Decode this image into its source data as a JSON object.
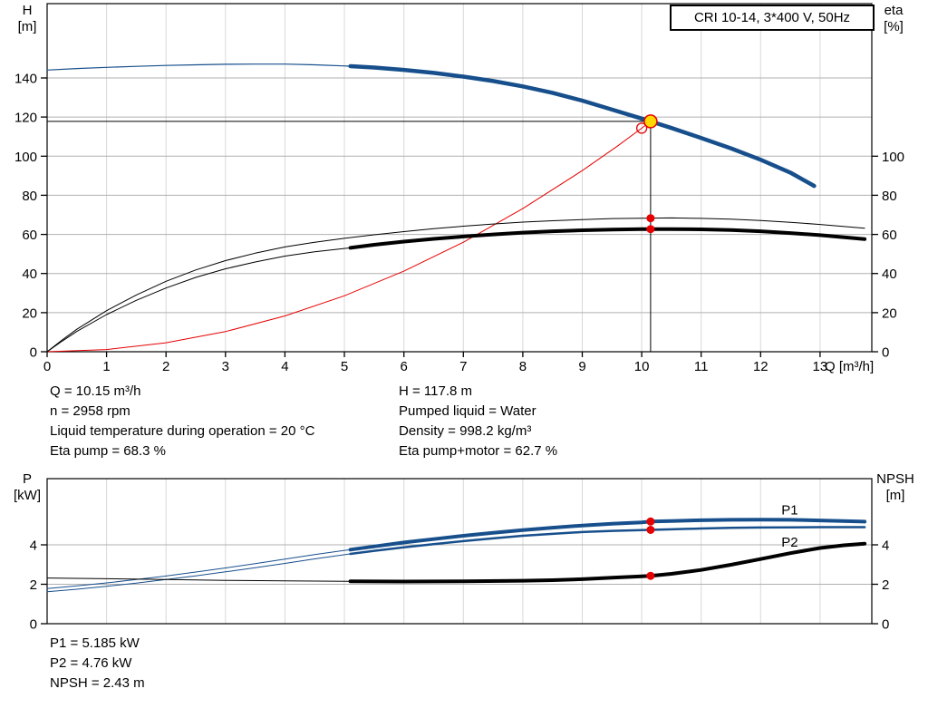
{
  "info": {
    "left": [
      "Q = 10.15 m³/h",
      "n = 2958 rpm",
      "Liquid temperature during operation = 20 °C",
      "Eta pump = 68.3 %"
    ],
    "right": [
      "H = 117.8 m",
      "Pumped liquid = Water",
      "Density = 998.2 kg/m³",
      "Eta pump+motor = 62.7 %"
    ],
    "bottom": [
      "P1 = 5.185 kW",
      "P2 = 4.76 kW",
      "NPSH = 2.43 m"
    ]
  },
  "colors": {
    "curve_blue": "#174f8c",
    "curve_black": "#000000",
    "red": "#e60000",
    "duty_yellow": "#ffd800",
    "grid_h": "#b0b0b0",
    "grid_v": "#d8d8d8",
    "frame": "#000000"
  },
  "chart_data": [
    {
      "type": "line",
      "title": "CRI 10-14, 3*400 V, 50Hz",
      "xlabel": "Q [m³/h]",
      "ylabel_left": [
        "H",
        "[m]"
      ],
      "ylabel_right": [
        "eta",
        "[%]"
      ],
      "xlim": [
        0,
        13.87
      ],
      "ylim_left": [
        0,
        178
      ],
      "x_ticks": [
        0,
        1,
        2,
        3,
        4,
        5,
        6,
        7,
        8,
        9,
        10,
        11,
        12,
        13
      ],
      "x_grid": [
        1,
        2,
        3,
        4,
        5,
        6,
        7,
        8,
        9,
        10,
        11,
        12,
        13
      ],
      "y_ticks_left": [
        0,
        20,
        40,
        60,
        80,
        100,
        120,
        140
      ],
      "y_ticks_right": [
        0,
        20,
        40,
        60,
        80,
        100
      ],
      "duty_lines": {
        "q": 10.15,
        "v": 117.8
      },
      "series": [
        {
          "name": "system-curve",
          "color": "red",
          "width": 1,
          "points": [
            [
              0,
              0
            ],
            [
              1,
              1.1
            ],
            [
              2,
              4.6
            ],
            [
              3,
              10.3
            ],
            [
              4,
              18.3
            ],
            [
              5,
              28.6
            ],
            [
              6,
              41.2
            ],
            [
              7,
              56
            ],
            [
              8,
              73.2
            ],
            [
              9,
              92.6
            ],
            [
              9.6,
              105.3
            ],
            [
              10,
              114.3
            ],
            [
              10.15,
              117.8
            ]
          ]
        },
        {
          "name": "hq-curve-thin",
          "color": "curve_blue",
          "width": 1.2,
          "points": [
            [
              0,
              144
            ],
            [
              0.5,
              144.8
            ],
            [
              1,
              145.4
            ],
            [
              1.5,
              145.9
            ],
            [
              2,
              146.4
            ],
            [
              2.5,
              146.7
            ],
            [
              3,
              147
            ],
            [
              3.5,
              147.1
            ],
            [
              4,
              147.1
            ],
            [
              4.5,
              146.7
            ],
            [
              5.1,
              146
            ]
          ]
        },
        {
          "name": "hq-curve",
          "color": "curve_blue",
          "width": 4.5,
          "points": [
            [
              5.1,
              146
            ],
            [
              5.5,
              145.3
            ],
            [
              6,
              144.1
            ],
            [
              6.5,
              142.6
            ],
            [
              7,
              140.7
            ],
            [
              7.5,
              138.4
            ],
            [
              8,
              135.7
            ],
            [
              8.5,
              132.4
            ],
            [
              9,
              128.4
            ],
            [
              9.5,
              123.8
            ],
            [
              10,
              119.2
            ],
            [
              10.15,
              117.8
            ],
            [
              10.5,
              114.4
            ],
            [
              11,
              109.3
            ],
            [
              11.5,
              104
            ],
            [
              12,
              98.2
            ],
            [
              12.5,
              91.6
            ],
            [
              12.9,
              84.8
            ]
          ]
        },
        {
          "name": "eta-pump-curve",
          "color": "curve_black",
          "width": 1,
          "points": [
            [
              0,
              0
            ],
            [
              0.25,
              6
            ],
            [
              0.5,
              11.5
            ],
            [
              1,
              21
            ],
            [
              1.5,
              29
            ],
            [
              2,
              36
            ],
            [
              2.5,
              41.8
            ],
            [
              3,
              46.6
            ],
            [
              3.5,
              50.4
            ],
            [
              4,
              53.6
            ],
            [
              4.5,
              56
            ],
            [
              5,
              58
            ],
            [
              5.5,
              59.8
            ],
            [
              6,
              61.4
            ],
            [
              6.5,
              62.9
            ],
            [
              7,
              64.2
            ],
            [
              7.5,
              65.3
            ],
            [
              8,
              66.3
            ],
            [
              8.5,
              67
            ],
            [
              9,
              67.6
            ],
            [
              9.5,
              68.1
            ],
            [
              10,
              68.3
            ],
            [
              10.5,
              68.4
            ],
            [
              11,
              68.2
            ],
            [
              11.5,
              67.8
            ],
            [
              12,
              67.1
            ],
            [
              12.5,
              66.2
            ],
            [
              13,
              65.1
            ],
            [
              13.75,
              63.2
            ]
          ]
        },
        {
          "name": "eta-pump-motor-thin",
          "color": "curve_black",
          "width": 1,
          "points": [
            [
              0,
              0
            ],
            [
              0.25,
              5.4
            ],
            [
              0.5,
              10.4
            ],
            [
              1,
              19
            ],
            [
              1.5,
              26.3
            ],
            [
              2,
              32.6
            ],
            [
              2.5,
              38
            ],
            [
              3,
              42.4
            ],
            [
              3.5,
              45.9
            ],
            [
              4,
              48.9
            ],
            [
              4.5,
              51.1
            ],
            [
              5.1,
              53.1
            ]
          ]
        },
        {
          "name": "eta-pump-motor-curve",
          "color": "curve_black",
          "width": 4,
          "points": [
            [
              5.1,
              53.1
            ],
            [
              5.5,
              54.7
            ],
            [
              6,
              56.3
            ],
            [
              6.5,
              57.7
            ],
            [
              7,
              58.9
            ],
            [
              7.5,
              60
            ],
            [
              8,
              60.9
            ],
            [
              8.5,
              61.6
            ],
            [
              9,
              62.1
            ],
            [
              9.5,
              62.5
            ],
            [
              10,
              62.65
            ],
            [
              10.15,
              62.7
            ],
            [
              10.5,
              62.7
            ],
            [
              11,
              62.6
            ],
            [
              11.5,
              62.2
            ],
            [
              12,
              61.6
            ],
            [
              12.5,
              60.7
            ],
            [
              13,
              59.6
            ],
            [
              13.75,
              57.6
            ]
          ]
        }
      ],
      "markers": [
        {
          "shape": "open",
          "name": "requested-duty-marker",
          "q": 10,
          "v": 114.3,
          "r": 5.5,
          "stroke": "red",
          "width": 1.3
        },
        {
          "shape": "dot",
          "name": "eta-pump-duty-dot",
          "q": 10.15,
          "v": 68.3,
          "r": 4.5,
          "fill": "red"
        },
        {
          "shape": "dot",
          "name": "eta-pump-motor-duty-dot",
          "q": 10.15,
          "v": 62.7,
          "r": 4.5,
          "fill": "red"
        },
        {
          "shape": "duty",
          "name": "duty-point-marker",
          "q": 10.15,
          "v": 117.8,
          "r": 7,
          "fill": "duty_yellow",
          "stroke": "red",
          "width": 1.5,
          "interactable": true
        }
      ],
      "point_labels": []
    },
    {
      "type": "line",
      "title": "",
      "xlabel": "",
      "ylabel_left": [
        "P",
        "[kW]"
      ],
      "ylabel_right": [
        "NPSH",
        "[m]"
      ],
      "xlim": [
        0,
        13.87
      ],
      "ylim_left": [
        0,
        7.36
      ],
      "x_ticks": [],
      "x_grid": [
        1,
        2,
        3,
        4,
        5,
        6,
        7,
        8,
        9,
        10,
        11,
        12,
        13
      ],
      "y_ticks_left": [
        0,
        2,
        4
      ],
      "y_ticks_right": [
        0,
        2,
        4
      ],
      "series": [
        {
          "name": "p1-curve-thin",
          "color": "curve_blue",
          "width": 1,
          "points": [
            [
              0,
              1.78
            ],
            [
              0.5,
              1.92
            ],
            [
              1,
              2.07
            ],
            [
              1.5,
              2.24
            ],
            [
              2,
              2.42
            ],
            [
              2.5,
              2.62
            ],
            [
              3,
              2.83
            ],
            [
              3.5,
              3.05
            ],
            [
              4,
              3.28
            ],
            [
              4.5,
              3.51
            ],
            [
              5.1,
              3.76
            ]
          ]
        },
        {
          "name": "p1-curve",
          "color": "curve_blue",
          "width": 4,
          "points": [
            [
              5.1,
              3.76
            ],
            [
              5.5,
              3.92
            ],
            [
              6,
              4.12
            ],
            [
              6.5,
              4.29
            ],
            [
              7,
              4.46
            ],
            [
              7.5,
              4.61
            ],
            [
              8,
              4.75
            ],
            [
              8.5,
              4.87
            ],
            [
              9,
              4.98
            ],
            [
              9.5,
              5.07
            ],
            [
              10,
              5.14
            ],
            [
              10.15,
              5.185
            ],
            [
              10.5,
              5.21
            ],
            [
              11,
              5.25
            ],
            [
              11.5,
              5.27
            ],
            [
              12,
              5.28
            ],
            [
              12.5,
              5.27
            ],
            [
              13,
              5.24
            ],
            [
              13.75,
              5.18
            ]
          ]
        },
        {
          "name": "p2-curve-thin",
          "color": "curve_blue",
          "width": 1,
          "points": [
            [
              0,
              1.62
            ],
            [
              0.5,
              1.75
            ],
            [
              1,
              1.9
            ],
            [
              1.5,
              2.06
            ],
            [
              2,
              2.24
            ],
            [
              2.5,
              2.43
            ],
            [
              3,
              2.63
            ],
            [
              3.5,
              2.84
            ],
            [
              4,
              3.06
            ],
            [
              4.5,
              3.29
            ],
            [
              5.1,
              3.54
            ]
          ]
        },
        {
          "name": "p2-curve",
          "color": "curve_blue",
          "width": 2.5,
          "points": [
            [
              5.1,
              3.54
            ],
            [
              5.5,
              3.7
            ],
            [
              6,
              3.88
            ],
            [
              6.5,
              4.04
            ],
            [
              7,
              4.19
            ],
            [
              7.5,
              4.33
            ],
            [
              8,
              4.46
            ],
            [
              8.5,
              4.56
            ],
            [
              9,
              4.65
            ],
            [
              9.5,
              4.71
            ],
            [
              10,
              4.75
            ],
            [
              10.15,
              4.76
            ],
            [
              10.5,
              4.79
            ],
            [
              11,
              4.83
            ],
            [
              11.5,
              4.86
            ],
            [
              12,
              4.88
            ],
            [
              12.5,
              4.89
            ],
            [
              13,
              4.9
            ],
            [
              13.75,
              4.9
            ]
          ]
        },
        {
          "name": "npsh-curve-thin",
          "color": "curve_black",
          "width": 1,
          "points": [
            [
              0,
              2.32
            ],
            [
              1,
              2.28
            ],
            [
              2,
              2.24
            ],
            [
              3,
              2.2
            ],
            [
              4,
              2.17
            ],
            [
              5.1,
              2.15
            ]
          ]
        },
        {
          "name": "npsh-curve",
          "color": "curve_black",
          "width": 4,
          "points": [
            [
              5.1,
              2.15
            ],
            [
              6,
              2.14
            ],
            [
              7,
              2.15
            ],
            [
              8,
              2.18
            ],
            [
              8.5,
              2.21
            ],
            [
              9,
              2.26
            ],
            [
              9.5,
              2.33
            ],
            [
              10,
              2.4
            ],
            [
              10.15,
              2.43
            ],
            [
              10.5,
              2.53
            ],
            [
              11,
              2.73
            ],
            [
              11.5,
              2.99
            ],
            [
              12,
              3.28
            ],
            [
              12.5,
              3.58
            ],
            [
              13,
              3.84
            ],
            [
              13.4,
              3.98
            ],
            [
              13.75,
              4.06
            ]
          ]
        }
      ],
      "markers": [
        {
          "shape": "dot",
          "name": "p1-duty-dot",
          "q": 10.15,
          "v": 5.185,
          "r": 4.5,
          "fill": "red"
        },
        {
          "shape": "dot",
          "name": "p2-duty-dot",
          "q": 10.15,
          "v": 4.76,
          "r": 4.5,
          "fill": "red"
        },
        {
          "shape": "dot",
          "name": "npsh-duty-dot",
          "q": 10.15,
          "v": 2.43,
          "r": 4.5,
          "fill": "red"
        }
      ],
      "point_labels": [
        {
          "text": "P1",
          "q": 12.35,
          "v": 5.55,
          "color": "curve_blue"
        },
        {
          "text": "P2",
          "q": 12.35,
          "v": 3.9,
          "color": "curve_blue"
        }
      ]
    }
  ]
}
